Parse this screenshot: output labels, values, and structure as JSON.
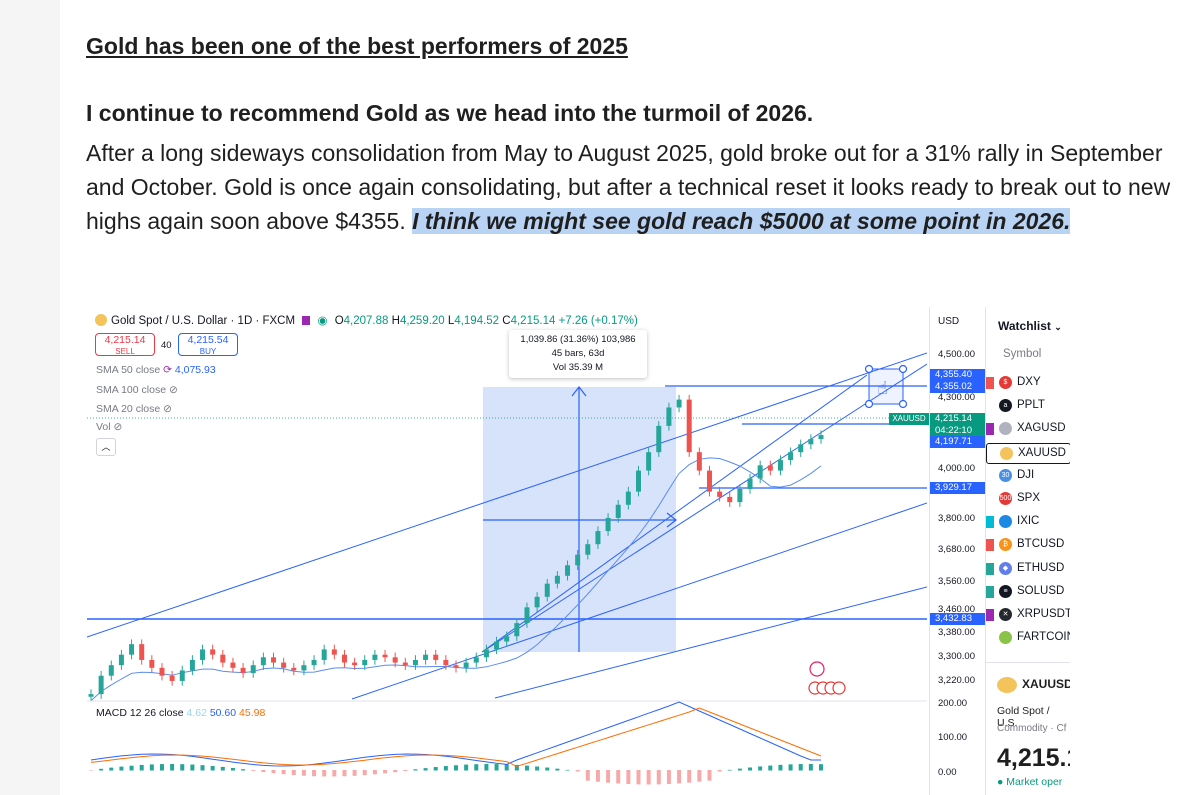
{
  "article": {
    "headline": "Gold has been one of the best performers of 2025",
    "lead": "I continue to recommend Gold as we head into the turmoil of 2026.",
    "body": "After a long sideways consolidation from May to August 2025, gold broke out for a 31% rally in September and October. Gold is once again consolidating, but after a technical reset it looks ready to break out to new highs again soon above $4355. ",
    "highlight": "I think we might see gold reach $5000 at some point in 2026."
  },
  "chart": {
    "symbol_title": "Gold Spot / U.S. Dollar · 1D · FXCM",
    "ohlc": {
      "o_label": "O",
      "o": "4,207.88",
      "h_label": "H",
      "h": "4,259.20",
      "l_label": "L",
      "l": "4,194.52",
      "c_label": "C",
      "c": "4,215.14",
      "change": "+7.26 (+0.17%)"
    },
    "sell": {
      "price": "4,215.14",
      "label": "SELL"
    },
    "buy": {
      "price": "4,215.54",
      "label": "BUY"
    },
    "spread": "40",
    "indicators": [
      {
        "label": "SMA 50 close",
        "value": "4,075.93"
      },
      {
        "label": "SMA 100 close",
        "value": ""
      },
      {
        "label": "SMA 20 close",
        "value": ""
      },
      {
        "label": "Vol",
        "value": ""
      }
    ],
    "measure": {
      "line1": "1,039.86 (31.36%) 103,986",
      "line2": "45 bars, 63d",
      "line3": "Vol 35.39 M"
    },
    "macd": {
      "label": "MACD 12 26 close",
      "v1": "4.62",
      "v2": "50.60",
      "v3": "45.98"
    },
    "currency": "USD",
    "price_ticks": [
      "4,500.00",
      "4,300.00",
      "4,000.00",
      "3,800.00",
      "3,680.00",
      "3,560.00",
      "3,460.00",
      "3,380.00",
      "3,300.00",
      "3,220.00"
    ],
    "macd_ticks": [
      "200.00",
      "100.00",
      "0.00"
    ],
    "price_tags": {
      "t1": "4,355.40",
      "t2": "4,355.02",
      "current": "4,215.14",
      "countdown": "04:22:10",
      "t3": "4,197.71",
      "t4": "3,929.17",
      "t5": "3,432.83",
      "symbol": "XAUUSD"
    },
    "colors": {
      "up": "#26a69a",
      "down": "#ef5350",
      "line": "#2962ff",
      "range": "#d7e2fb"
    }
  },
  "chart_data": {
    "type": "candlestick",
    "title": "Gold Spot / U.S. Dollar · 1D · FXCM",
    "ylim": [
      3200,
      4550
    ],
    "series": [
      {
        "name": "XAUUSD",
        "values": [
          3230,
          3300,
          3340,
          3380,
          3420,
          3360,
          3330,
          3300,
          3280,
          3320,
          3360,
          3400,
          3380,
          3350,
          3330,
          3310,
          3340,
          3370,
          3350,
          3330,
          3320,
          3340,
          3360,
          3400,
          3380,
          3350,
          3340,
          3360,
          3380,
          3370,
          3350,
          3340,
          3360,
          3380,
          3360,
          3340,
          3330,
          3350,
          3370,
          3400,
          3430,
          3450,
          3500,
          3560,
          3600,
          3650,
          3680,
          3720,
          3760,
          3800,
          3850,
          3900,
          3950,
          4000,
          4080,
          4150,
          4250,
          4320,
          4350,
          4150,
          4080,
          4000,
          3980,
          3960,
          4010,
          4050,
          4100,
          4080,
          4120,
          4150,
          4180,
          4200,
          4215
        ]
      }
    ]
  },
  "watchlist": {
    "title": "Watchlist",
    "column": "Symbol",
    "items": [
      {
        "sym": "DXY",
        "flag": "#ef5350",
        "icon": "#e53935",
        "glyph": "$"
      },
      {
        "sym": "PPLT",
        "flag": "",
        "icon": "#131722",
        "glyph": "a"
      },
      {
        "sym": "XAGUSD",
        "flag": "#9c27b0",
        "icon": "#b0b3bf",
        "glyph": ""
      },
      {
        "sym": "XAUUSD",
        "flag": "",
        "icon": "#f5c35b",
        "glyph": ""
      },
      {
        "sym": "DJI",
        "flag": "",
        "icon": "#4a90e2",
        "glyph": "30"
      },
      {
        "sym": "SPX",
        "flag": "",
        "icon": "#e53935",
        "glyph": "500"
      },
      {
        "sym": "IXIC",
        "flag": "#00bcd4",
        "icon": "#1e88e5",
        "glyph": ""
      },
      {
        "sym": "BTCUSD",
        "flag": "#ef5350",
        "icon": "#f7931a",
        "glyph": "₿"
      },
      {
        "sym": "ETHUSD",
        "flag": "#26a69a",
        "icon": "#627eea",
        "glyph": "◆"
      },
      {
        "sym": "SOLUSD",
        "flag": "#26a69a",
        "icon": "#131722",
        "glyph": "≡"
      },
      {
        "sym": "XRPUSDT",
        "flag": "#9c27b0",
        "icon": "#23292f",
        "glyph": "✕"
      },
      {
        "sym": "FARTCOIN",
        "flag": "",
        "icon": "#8bc34a",
        "glyph": ""
      }
    ]
  },
  "detail": {
    "symbol": "XAUUSD",
    "name": "Gold Spot / U.S.",
    "type": "Commodity · Cf",
    "price": "4,215.1",
    "status": "● Market oper"
  }
}
